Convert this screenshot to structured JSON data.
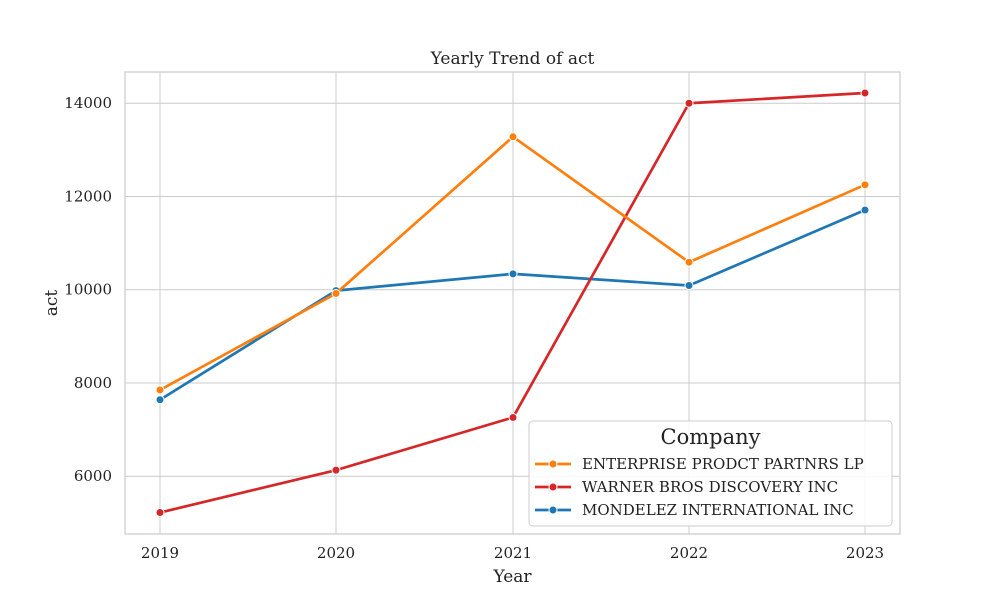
{
  "chart_data": {
    "type": "line",
    "title": "Yearly Trend of act",
    "xlabel": "Year",
    "ylabel": "act",
    "x": [
      2019,
      2020,
      2021,
      2022,
      2023
    ],
    "x_tick_labels": [
      "2019",
      "2020",
      "2021",
      "2022",
      "2023"
    ],
    "y_ticks": [
      6000,
      8000,
      10000,
      12000,
      14000
    ],
    "y_tick_labels": [
      "6000",
      "8000",
      "10000",
      "12000",
      "14000"
    ],
    "ylim": [
      4760,
      14670
    ],
    "grid": true,
    "legend": {
      "title": "Company",
      "placement": "lower-right"
    },
    "series": [
      {
        "name": "ENTERPRISE PRODCT PARTNRS LP",
        "color": "#ff7f0e",
        "values": [
          7850,
          9920,
          13280,
          10590,
          12250
        ]
      },
      {
        "name": "WARNER BROS DISCOVERY INC",
        "color": "#d62728",
        "values": [
          5220,
          6130,
          7260,
          14000,
          14220
        ]
      },
      {
        "name": "MONDELEZ INTERNATIONAL INC",
        "color": "#1f77b4",
        "values": [
          7640,
          9980,
          10340,
          10090,
          11710
        ]
      }
    ]
  }
}
